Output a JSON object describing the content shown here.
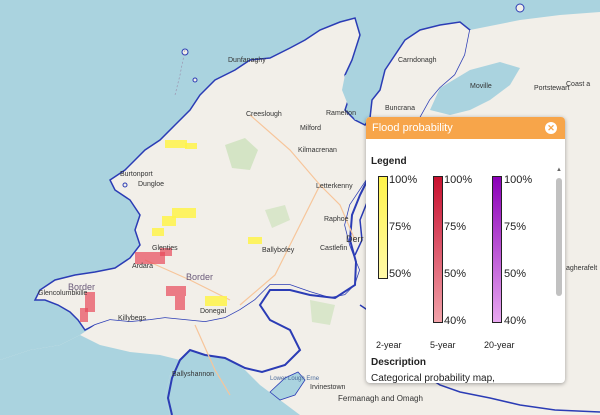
{
  "map": {
    "places": [
      {
        "id": "dunfanaghy",
        "name": "Dunfanaghy"
      },
      {
        "id": "carndonagh",
        "name": "Carndonagh"
      },
      {
        "id": "moville",
        "name": "Moville"
      },
      {
        "id": "portstewart",
        "name": "Portstewart"
      },
      {
        "id": "coast",
        "name": "Coast a"
      },
      {
        "id": "buncrana",
        "name": "Buncrana"
      },
      {
        "id": "creeslough",
        "name": "Creeslough"
      },
      {
        "id": "ramelton",
        "name": "Ramelton"
      },
      {
        "id": "milford",
        "name": "Milford"
      },
      {
        "id": "kilmacrenan",
        "name": "Kilmacrenan"
      },
      {
        "id": "letterkenny",
        "name": "Letterkenny"
      },
      {
        "id": "raphoe",
        "name": "Raphoe"
      },
      {
        "id": "derry",
        "name": "Derr"
      },
      {
        "id": "ballybofey",
        "name": "Ballybofey"
      },
      {
        "id": "castlefinn",
        "name": "Castlefin"
      },
      {
        "id": "burtonport",
        "name": "Burtonport"
      },
      {
        "id": "dungloe",
        "name": "Dungloe"
      },
      {
        "id": "glenties",
        "name": "Glenties"
      },
      {
        "id": "ardara",
        "name": "Ardara"
      },
      {
        "id": "glencolumbkille",
        "name": "Glencolumbkille"
      },
      {
        "id": "killybegs",
        "name": "Killybegs"
      },
      {
        "id": "donegal",
        "name": "Donegal"
      },
      {
        "id": "ballyshannon",
        "name": "Ballyshannon"
      },
      {
        "id": "irvinestown",
        "name": "Irvinestown"
      },
      {
        "id": "lough_erne",
        "name": "Lower Lough Erne"
      },
      {
        "id": "magherafelt",
        "name": "agherafelt"
      },
      {
        "id": "ferm",
        "name": "Fermanagh and Omagh"
      }
    ],
    "region_labels": [
      "Border",
      "Border"
    ]
  },
  "panel": {
    "title": "Flood probability",
    "close_icon": "close-icon",
    "legend_title": "Legend",
    "bars": [
      {
        "id": "two-year",
        "label": "2-year",
        "top_label": "100%",
        "mid_label": "75%",
        "bottom_label": "50%",
        "color_top": "#fff34a",
        "color_bottom": "#fff9a8"
      },
      {
        "id": "five-year",
        "label": "5-year",
        "top_label": "100%",
        "mid_label": "75%",
        "low_label": "50%",
        "bottom_label": "40%",
        "color_top": "#c8102e",
        "color_bottom": "#f2a3aa"
      },
      {
        "id": "twenty-year",
        "label": "20-year",
        "top_label": "100%",
        "mid_label": "75%",
        "low_label": "50%",
        "bottom_label": "40%",
        "color_top": "#8b00b8",
        "color_bottom": "#e8a8f0"
      }
    ],
    "description_title": "Description",
    "description_text": "Categorical probability map,"
  }
}
